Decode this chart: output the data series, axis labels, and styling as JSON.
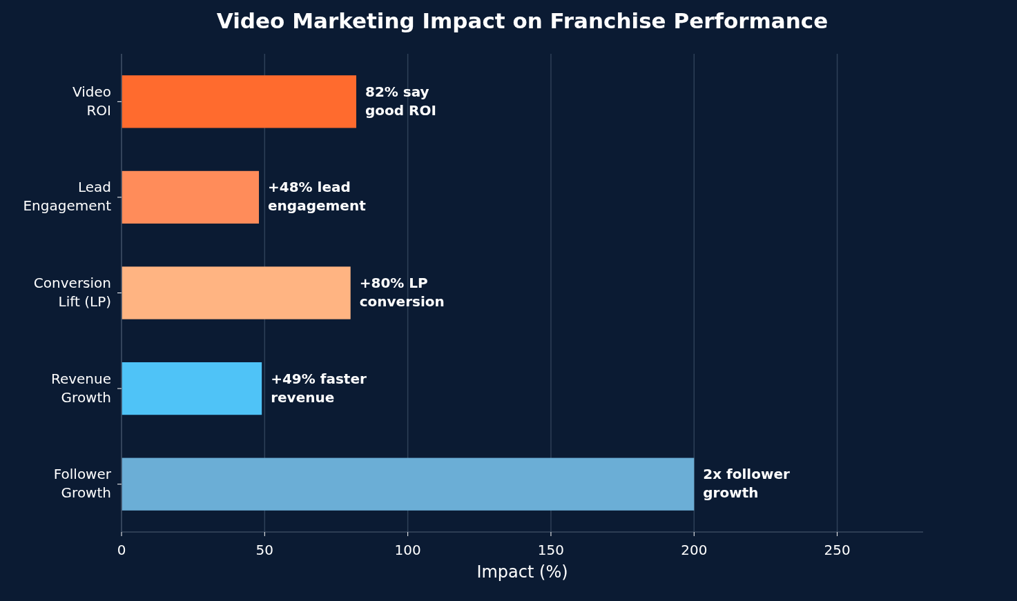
{
  "chart_data": {
    "type": "bar",
    "orientation": "horizontal",
    "title": "Video Marketing Impact on Franchise Performance",
    "xlabel": "Impact (%)",
    "categories": [
      "Video\nROI",
      "Lead\nEngagement",
      "Conversion\nLift (LP)",
      "Revenue\nGrowth",
      "Follower\nGrowth"
    ],
    "values": [
      82,
      48,
      80,
      49,
      200
    ],
    "colors": [
      "#ff6b2e",
      "#ff8c5a",
      "#ffb482",
      "#4fc3f7",
      "#6baed6"
    ],
    "value_labels": [
      "82% say\ngood ROI",
      "+48% lead\nengagement",
      "+80% LP\nconversion",
      "+49% faster\nrevenue",
      null
    ],
    "annotations": [
      {
        "text": "2x follower\ngrowth",
        "x": 200,
        "y": "Follower\nGrowth"
      }
    ],
    "xlim": [
      0,
      280
    ],
    "xticks": [
      0,
      50,
      100,
      150,
      200,
      250
    ],
    "grid": "x"
  }
}
